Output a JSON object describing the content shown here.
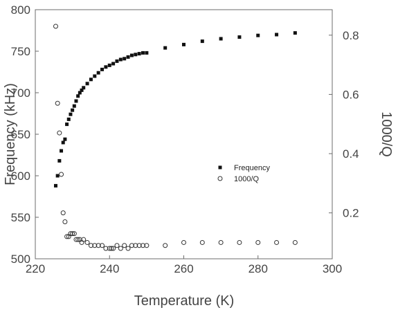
{
  "chart_data": {
    "type": "scatter",
    "title": "",
    "xlabel": "Temperature (K)",
    "ylabel": "Frequency (kHz)",
    "y2label": "1000/Q",
    "xlim": [
      220,
      300
    ],
    "ylim": [
      500,
      800
    ],
    "y2lim": [
      0.045,
      0.886
    ],
    "xticks": [
      220,
      240,
      260,
      280,
      300
    ],
    "yticks": [
      500,
      550,
      600,
      650,
      700,
      750,
      800
    ],
    "y2ticks": [
      0.2,
      0.4,
      0.6,
      0.8
    ],
    "y2tick_labels": [
      "0.2",
      "0.4",
      "0.6",
      "0.8"
    ],
    "legend": "center-right",
    "grid": false,
    "series": [
      {
        "name": "Frequency",
        "axis": "left",
        "marker": "square-filled",
        "x": [
          225.5,
          226,
          226.5,
          227,
          227.5,
          228,
          228.5,
          229,
          229.5,
          230,
          230.5,
          231,
          231.5,
          232,
          232.5,
          233,
          234,
          235,
          236,
          237,
          238,
          239,
          240,
          241,
          242,
          243,
          244,
          245,
          246,
          247,
          248,
          249,
          250,
          255,
          260,
          265,
          270,
          275,
          280,
          285,
          290
        ],
        "y": [
          588,
          600,
          618,
          630,
          640,
          644,
          662,
          668,
          674,
          679,
          684,
          690,
          696,
          700,
          703,
          706,
          711,
          716,
          720,
          724,
          728,
          731,
          733,
          735,
          738,
          740,
          741,
          743,
          745,
          746,
          747,
          748,
          748,
          754,
          758,
          762,
          765,
          767,
          769,
          770,
          772
        ]
      },
      {
        "name": "1000/Q",
        "axis": "right",
        "marker": "circle-open",
        "x": [
          225.5,
          226,
          226.5,
          227,
          227.5,
          228,
          228.5,
          229,
          229.5,
          230,
          230.5,
          231,
          231.5,
          232,
          232.5,
          233,
          234,
          235,
          236,
          237,
          238,
          239,
          240,
          240.5,
          241,
          242,
          243,
          244,
          245,
          246,
          247,
          248,
          249,
          250,
          255,
          260,
          265,
          270,
          275,
          280,
          285,
          290
        ],
        "y": [
          0.83,
          0.57,
          0.47,
          0.33,
          0.2,
          0.17,
          0.12,
          0.12,
          0.13,
          0.13,
          0.13,
          0.11,
          0.11,
          0.11,
          0.1,
          0.11,
          0.1,
          0.09,
          0.09,
          0.09,
          0.09,
          0.08,
          0.08,
          0.08,
          0.08,
          0.09,
          0.08,
          0.09,
          0.08,
          0.09,
          0.09,
          0.09,
          0.09,
          0.09,
          0.09,
          0.1,
          0.1,
          0.1,
          0.1,
          0.1,
          0.1,
          0.1
        ]
      }
    ]
  }
}
